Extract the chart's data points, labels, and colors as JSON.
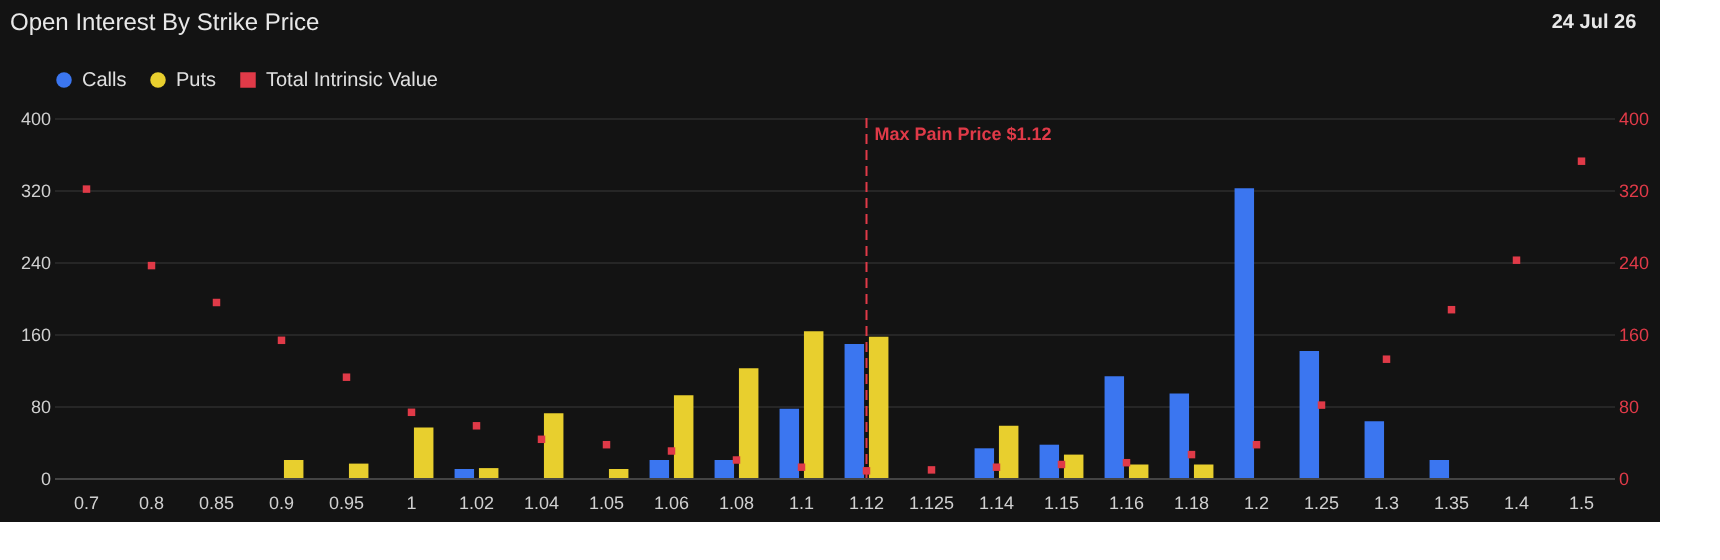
{
  "chart_data": {
    "type": "bar",
    "title": "Open Interest By Strike Price",
    "categories": [
      "0.7",
      "0.8",
      "0.85",
      "0.9",
      "0.95",
      "1",
      "1.02",
      "1.04",
      "1.05",
      "1.06",
      "1.08",
      "1.1",
      "1.12",
      "1.125",
      "1.14",
      "1.15",
      "1.16",
      "1.18",
      "1.2",
      "1.25",
      "1.3",
      "1.35",
      "1.4",
      "1.5"
    ],
    "series": [
      {
        "name": "Calls",
        "color": "#3b76f0",
        "values": [
          null,
          null,
          null,
          null,
          null,
          null,
          10,
          null,
          null,
          20,
          20,
          77,
          149,
          null,
          33,
          37,
          113,
          94,
          322,
          141,
          63,
          20,
          null,
          null
        ]
      },
      {
        "name": "Puts",
        "color": "#e8cf2e",
        "values": [
          null,
          null,
          null,
          20,
          16,
          56,
          11,
          72,
          10,
          92,
          122,
          163,
          157,
          null,
          58,
          26,
          15,
          15,
          null,
          null,
          null,
          null,
          null,
          null
        ]
      },
      {
        "name": "Total Intrinsic Value",
        "color": "#e03a48",
        "type": "scatter",
        "axis": "y2",
        "marker": "square",
        "values": [
          321,
          236,
          195,
          153,
          112,
          73,
          58,
          43,
          37,
          30,
          20,
          12,
          8,
          9,
          12,
          15,
          17,
          26,
          37,
          81,
          132,
          187,
          242,
          352
        ]
      }
    ],
    "ylim": [
      0,
      400
    ],
    "yticks": [
      0,
      80,
      160,
      240,
      320,
      400
    ],
    "y2lim": [
      0,
      400
    ],
    "y2ticks": [
      0,
      80,
      160,
      240,
      320,
      400
    ],
    "ref_lines": [
      {
        "axis": "x",
        "value": "1.12",
        "label": "Max Pain Price $1.12",
        "color": "#e03a48",
        "line_style": "dashed"
      }
    ],
    "annotations": [
      "24 Jul 26"
    ],
    "legend": "top left",
    "grid": "y"
  }
}
